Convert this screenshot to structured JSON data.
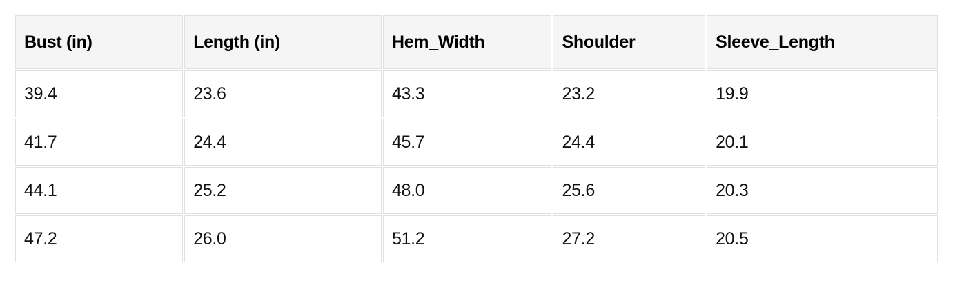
{
  "chart_data": {
    "type": "table",
    "columns": [
      "Bust (in)",
      "Length (in)",
      "Hem_Width",
      "Shoulder",
      "Sleeve_Length"
    ],
    "rows": [
      [
        "39.4",
        "23.6",
        "43.3",
        "23.2",
        "19.9"
      ],
      [
        "41.7",
        "24.4",
        "45.7",
        "24.4",
        "20.1"
      ],
      [
        "44.1",
        "25.2",
        "48.0",
        "25.6",
        "20.3"
      ],
      [
        "47.2",
        "26.0",
        "51.2",
        "27.2",
        "20.5"
      ]
    ],
    "layout": "header row shaded, 4 data rows, left-aligned cells"
  },
  "style": {
    "page_bg": "#ffffff",
    "header_bg": "#f5f5f5",
    "row_bg": "#ffffff",
    "border_color": "#e0e0e0",
    "text_color": "#111111"
  }
}
